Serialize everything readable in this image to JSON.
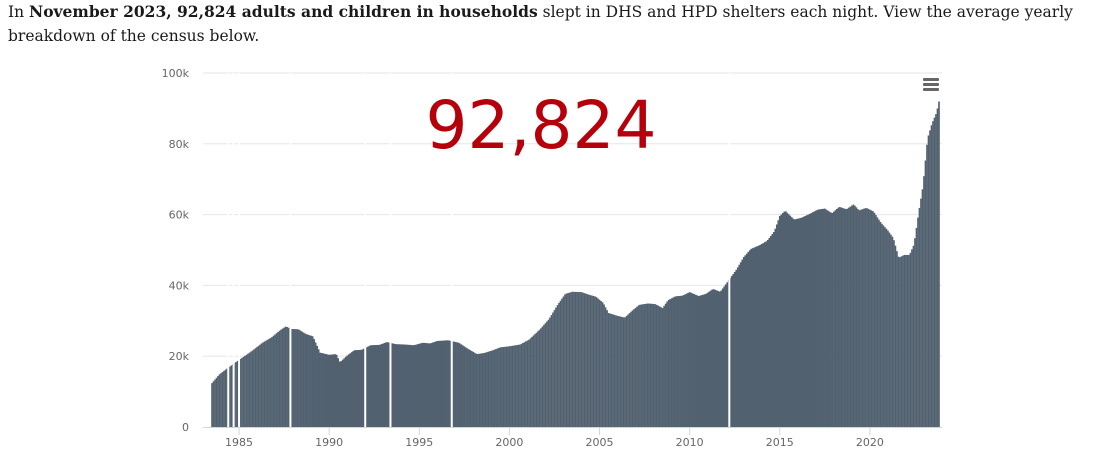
{
  "intro": {
    "prefix": "In ",
    "bold": "November 2023, 92,824 adults and children in households",
    "suffix": " slept in DHS and HPD shelters each night. View the average yearly breakdown of the census below."
  },
  "chart_data": {
    "type": "bar",
    "highlight_value": "92,824",
    "color": "#526170",
    "highlight_color": "#b5000c",
    "ylim": [
      0,
      100000
    ],
    "xlim": [
      1983.0,
      2024.0
    ],
    "y_ticks": [
      0,
      20000,
      40000,
      60000,
      80000,
      100000
    ],
    "y_tick_labels": [
      "0",
      "20k",
      "40k",
      "60k",
      "80k",
      "100k"
    ],
    "x_ticks": [
      1985,
      1990,
      1995,
      2000,
      2005,
      2010,
      2015,
      2020
    ],
    "x_tick_labels": [
      "1985",
      "1990",
      "1995",
      "2000",
      "2005",
      "2010",
      "2015",
      "2020"
    ],
    "grid": true,
    "legend": "none",
    "anchors": [
      [
        1983.5,
        12400
      ],
      [
        1983.9,
        14800
      ],
      [
        1984.2,
        16000
      ],
      [
        1984.9,
        18600
      ],
      [
        1985.3,
        20000
      ],
      [
        1985.8,
        21800
      ],
      [
        1986.3,
        23800
      ],
      [
        1986.8,
        25300
      ],
      [
        1987.3,
        27400
      ],
      [
        1987.6,
        28400
      ],
      [
        1987.9,
        27700
      ],
      [
        1988.3,
        27600
      ],
      [
        1988.7,
        26300
      ],
      [
        1989.1,
        25600
      ],
      [
        1989.5,
        21000
      ],
      [
        1990.0,
        20400
      ],
      [
        1990.4,
        20600
      ],
      [
        1990.6,
        18300
      ],
      [
        1991.0,
        20200
      ],
      [
        1991.4,
        21700
      ],
      [
        1991.8,
        21800
      ],
      [
        1992.3,
        23100
      ],
      [
        1992.8,
        23200
      ],
      [
        1993.2,
        24000
      ],
      [
        1993.7,
        23400
      ],
      [
        1994.2,
        23300
      ],
      [
        1994.7,
        23100
      ],
      [
        1995.2,
        23800
      ],
      [
        1995.6,
        23600
      ],
      [
        1996.0,
        24300
      ],
      [
        1996.6,
        24500
      ],
      [
        1997.2,
        23800
      ],
      [
        1997.7,
        22100
      ],
      [
        1998.2,
        20600
      ],
      [
        1998.6,
        20900
      ],
      [
        1999.1,
        21700
      ],
      [
        1999.5,
        22500
      ],
      [
        2000.0,
        22800
      ],
      [
        2000.6,
        23300
      ],
      [
        2001.1,
        24700
      ],
      [
        2001.7,
        27600
      ],
      [
        2002.2,
        30500
      ],
      [
        2002.7,
        34700
      ],
      [
        2003.1,
        37600
      ],
      [
        2003.5,
        38200
      ],
      [
        2004.0,
        38100
      ],
      [
        2004.4,
        37400
      ],
      [
        2004.8,
        36800
      ],
      [
        2005.2,
        35100
      ],
      [
        2005.5,
        32200
      ],
      [
        2006.0,
        31400
      ],
      [
        2006.4,
        30900
      ],
      [
        2006.8,
        32800
      ],
      [
        2007.2,
        34500
      ],
      [
        2007.7,
        34900
      ],
      [
        2008.1,
        34700
      ],
      [
        2008.5,
        33600
      ],
      [
        2008.8,
        35800
      ],
      [
        2009.2,
        36900
      ],
      [
        2009.6,
        37100
      ],
      [
        2010.0,
        38100
      ],
      [
        2010.5,
        37000
      ],
      [
        2010.9,
        37600
      ],
      [
        2011.3,
        39000
      ],
      [
        2011.7,
        38200
      ],
      [
        2012.1,
        41000
      ],
      [
        2012.6,
        44500
      ],
      [
        2013.0,
        48000
      ],
      [
        2013.4,
        50300
      ],
      [
        2013.9,
        51400
      ],
      [
        2014.3,
        52600
      ],
      [
        2014.7,
        55300
      ],
      [
        2015.0,
        59600
      ],
      [
        2015.3,
        61100
      ],
      [
        2015.8,
        58600
      ],
      [
        2016.2,
        59100
      ],
      [
        2016.7,
        60300
      ],
      [
        2017.1,
        61400
      ],
      [
        2017.5,
        61700
      ],
      [
        2017.9,
        60400
      ],
      [
        2018.3,
        62200
      ],
      [
        2018.7,
        61500
      ],
      [
        2019.1,
        62900
      ],
      [
        2019.4,
        61200
      ],
      [
        2019.8,
        61900
      ],
      [
        2020.2,
        60900
      ],
      [
        2020.6,
        57800
      ],
      [
        2021.0,
        55500
      ],
      [
        2021.3,
        53400
      ],
      [
        2021.6,
        47800
      ],
      [
        2021.9,
        48600
      ],
      [
        2022.2,
        48600
      ],
      [
        2022.45,
        51600
      ],
      [
        2022.7,
        60300
      ],
      [
        2022.95,
        68200
      ],
      [
        2023.2,
        81500
      ],
      [
        2023.45,
        85800
      ],
      [
        2023.7,
        88800
      ],
      [
        2023.87,
        92824
      ]
    ],
    "gaps": [
      1984.4,
      1984.7,
      1985.0,
      1987.85,
      1992.0,
      1993.4,
      1996.8,
      2012.2
    ]
  }
}
